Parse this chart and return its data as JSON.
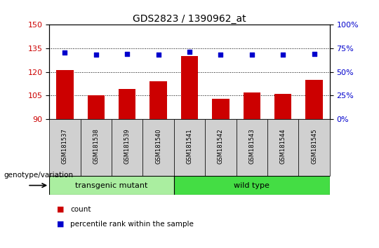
{
  "title": "GDS2823 / 1390962_at",
  "samples": [
    "GSM181537",
    "GSM181538",
    "GSM181539",
    "GSM181540",
    "GSM181541",
    "GSM181542",
    "GSM181543",
    "GSM181544",
    "GSM181545"
  ],
  "counts": [
    121,
    105,
    109,
    114,
    130,
    103,
    107,
    106,
    115
  ],
  "percentile_ranks": [
    70.5,
    68.5,
    69.0,
    68.5,
    71.0,
    68.0,
    68.5,
    68.5,
    69.0
  ],
  "bar_base": 90,
  "ylim_left": [
    90,
    150
  ],
  "ylim_right": [
    0,
    100
  ],
  "yticks_left": [
    90,
    105,
    120,
    135,
    150
  ],
  "yticks_right": [
    0,
    25,
    50,
    75,
    100
  ],
  "bar_color": "#cc0000",
  "dot_color": "#0000cc",
  "grid_color": "#000000",
  "left_tick_color": "#cc0000",
  "right_tick_color": "#0000cc",
  "n_transgenic": 4,
  "n_wildtype": 5,
  "transgenic_label": "transgenic mutant",
  "wildtype_label": "wild type",
  "sample_bg_color": "#d0d0d0",
  "transgenic_color": "#aaeea0",
  "wildtype_color": "#44dd44",
  "genotype_label": "genotype/variation",
  "legend_count_label": "count",
  "legend_percentile_label": "percentile rank within the sample",
  "bar_width": 0.55
}
